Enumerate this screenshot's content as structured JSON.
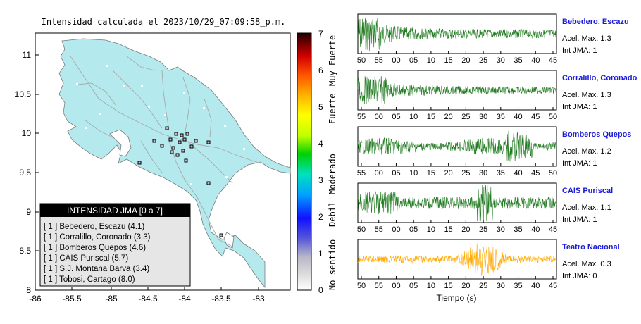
{
  "map": {
    "title": "Intensidad calculada el 2023/10/29_07:09:58_p.m.",
    "lat_ticks": [
      "11",
      "10.5",
      "10",
      "9.5",
      "9",
      "8.5",
      "8"
    ],
    "lon_ticks": [
      "-86",
      "-85.5",
      "-85",
      "-84.5",
      "-84",
      "-83.5",
      "-83"
    ],
    "land_color": "#b4eaed",
    "sea_color": "#ffffff",
    "road_color": "#a8a8a8",
    "station_marker": "small-square"
  },
  "colorbar": {
    "ticks": [
      "0",
      "1",
      "2",
      "3",
      "4",
      "5",
      "6",
      "7"
    ],
    "categories": [
      "No sentido",
      "Debil",
      "Moderado",
      "Fuerte",
      "Muy Fuerte"
    ]
  },
  "legend": {
    "title": "INTENSIDAD JMA [0 a 7]",
    "items": [
      {
        "label": "[ 1 ]  Bebedero, Escazu (4.1)"
      },
      {
        "label": "[ 1 ]  Corralillo, Coronado (3.3)"
      },
      {
        "label": "[ 1 ]  Bomberos Quepos (4.6)"
      },
      {
        "label": "[ 1 ]  CAIS Puriscal (5.7)"
      },
      {
        "label": "[ 1 ]  S.J. Montana Barva (3.4)"
      },
      {
        "label": "[ 1 ]  Tobosi, Cartago (8.0)"
      }
    ]
  },
  "traces": [
    {
      "name": "Bebedero, Escazu",
      "accel": "Acel. Max. 1.3",
      "intensity": "Int JMA: 1",
      "ticks": [
        "50",
        "55",
        "00",
        "05",
        "10",
        "15",
        "20",
        "25",
        "30",
        "35",
        "40",
        "45"
      ],
      "color": "#1f7a1f",
      "name_color": "#1a1adc"
    },
    {
      "name": "Corralillo, Coronado",
      "accel": "Acel. Max. 1.3",
      "intensity": "Int JMA: 1",
      "ticks": [
        "55",
        "00",
        "05",
        "10",
        "15",
        "20",
        "25",
        "30",
        "35",
        "40",
        "45",
        "50"
      ],
      "color": "#1f7a1f",
      "name_color": "#1a1adc"
    },
    {
      "name": "Bomberos Quepos",
      "accel": "Acel. Max. 1.2",
      "intensity": "Int JMA: 1",
      "ticks": [
        "55",
        "00",
        "05",
        "10",
        "15",
        "20",
        "25",
        "30",
        "35",
        "40",
        "45",
        "50"
      ],
      "color": "#1f7a1f",
      "name_color": "#1a1adc"
    },
    {
      "name": "CAIS Puriscal",
      "accel": "Acel. Max. 1.1",
      "intensity": "Int JMA: 1",
      "ticks": [
        "50",
        "55",
        "00",
        "05",
        "10",
        "15",
        "20",
        "25",
        "30",
        "35",
        "40",
        "45"
      ],
      "color": "#1f7a1f",
      "name_color": "#1a1adc"
    },
    {
      "name": "Teatro Nacional",
      "accel": "Acel. Max. 0.3",
      "intensity": "Int JMA: 0",
      "ticks": [
        "50",
        "55",
        "00",
        "05",
        "10",
        "15",
        "20",
        "25",
        "30",
        "35",
        "40",
        "45"
      ],
      "color": "#ffaa00",
      "name_color": "#1a1adc"
    }
  ],
  "time_axis_label": "Tiempo (s)"
}
